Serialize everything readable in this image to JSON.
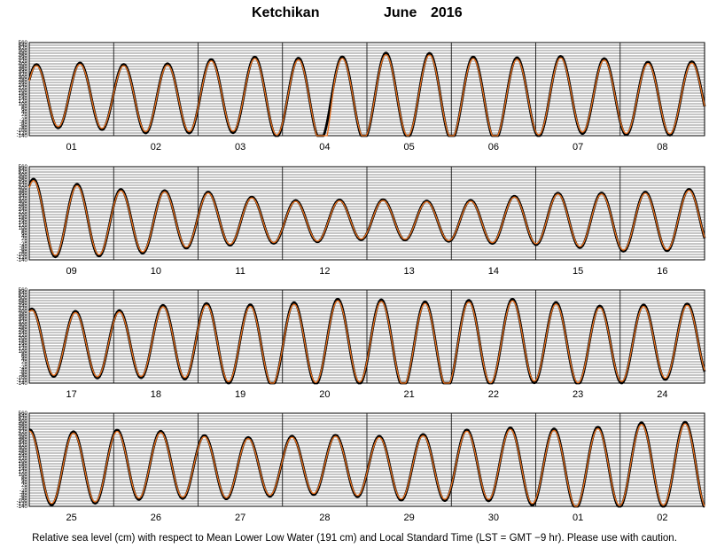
{
  "chart_data": {
    "type": "line",
    "title": {
      "station": "Ketchikan",
      "month": "June",
      "year": "2016"
    },
    "y_tick_labels": [
      "560",
      "540",
      "520",
      "500",
      "480",
      "460",
      "440",
      "420",
      "400",
      "380",
      "360",
      "340",
      "320",
      "300",
      "280",
      "260",
      "240",
      "220",
      "200",
      "180",
      "160",
      "140",
      "120",
      "100",
      "80",
      "60",
      "40",
      "20",
      "0",
      "-20",
      "-40",
      "-60",
      "-80",
      "-100",
      "-120",
      "-140"
    ],
    "ylim": [
      -140,
      560
    ],
    "grid": true,
    "series": [
      {
        "color": "#000000",
        "description_key": "observed"
      },
      {
        "color": "#e8701e",
        "description_key": "predicted"
      }
    ],
    "panels": [
      {
        "day_labels": [
          "01",
          "02",
          "03",
          "04",
          "05",
          "06",
          "07",
          "08"
        ],
        "phase": 0.55,
        "mean": 150,
        "amplitude_curve": [
          [
            0,
            240
          ],
          [
            1,
            250
          ],
          [
            2,
            270
          ],
          [
            3,
            300
          ],
          [
            4,
            320
          ],
          [
            5,
            320
          ],
          [
            6,
            300
          ],
          [
            7,
            280
          ],
          [
            8,
            270
          ]
        ],
        "glitch": {
          "day": 3.5,
          "width": 0.12,
          "depth": -150
        }
      },
      {
        "day_labels": [
          "09",
          "10",
          "11",
          "12",
          "13",
          "14",
          "15",
          "16"
        ],
        "phase": 0.95,
        "mean": 155,
        "amplitude_curve": [
          [
            0,
            300
          ],
          [
            1,
            250
          ],
          [
            2,
            210
          ],
          [
            3,
            160
          ],
          [
            4,
            150
          ],
          [
            5,
            150
          ],
          [
            6,
            190
          ],
          [
            7,
            220
          ],
          [
            8,
            230
          ]
        ],
        "glitch": null
      },
      {
        "day_labels": [
          "17",
          "18",
          "19",
          "20",
          "21",
          "22",
          "23",
          "24"
        ],
        "phase": 1.2,
        "mean": 160,
        "amplitude_curve": [
          [
            0,
            250
          ],
          [
            1,
            250
          ],
          [
            2,
            290
          ],
          [
            3,
            310
          ],
          [
            4,
            320
          ],
          [
            5,
            330
          ],
          [
            6,
            310
          ],
          [
            7,
            290
          ],
          [
            8,
            280
          ]
        ],
        "glitch": null
      },
      {
        "day_labels": [
          "25",
          "26",
          "27",
          "28",
          "29",
          "30",
          "01",
          "02"
        ],
        "phase": 1.5,
        "mean": 160,
        "amplitude_curve": [
          [
            0,
            280
          ],
          [
            1,
            270
          ],
          [
            2,
            240
          ],
          [
            3,
            220
          ],
          [
            4,
            230
          ],
          [
            5,
            260
          ],
          [
            6,
            290
          ],
          [
            7,
            310
          ],
          [
            8,
            330
          ]
        ],
        "glitch": null
      }
    ]
  },
  "footer": {
    "note": "Relative sea level (cm) with respect to Mean Lower Low Water (191 cm) and Local Standard Time (LST = GMT −9 hr). Please use with caution."
  }
}
